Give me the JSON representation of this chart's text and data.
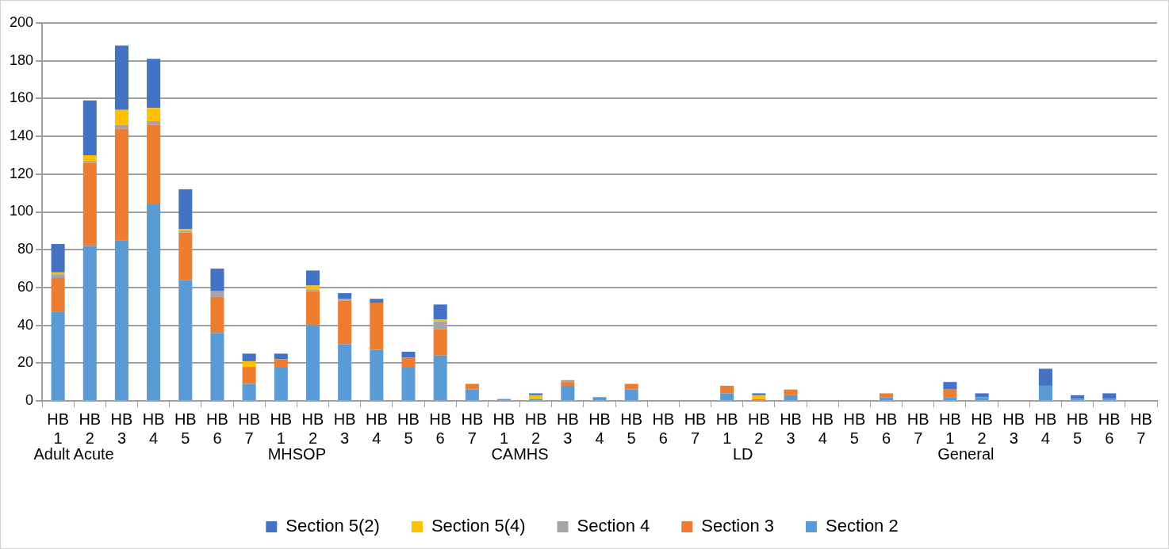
{
  "chart_data": {
    "type": "bar",
    "stacked": true,
    "categories": [
      "HB 1",
      "HB 2",
      "HB 3",
      "HB 4",
      "HB 5",
      "HB 6",
      "HB 7",
      "HB 1",
      "HB 2",
      "HB 3",
      "HB 4",
      "HB 5",
      "HB 6",
      "HB 7",
      "HB 1",
      "HB 2",
      "HB 3",
      "HB 4",
      "HB 5",
      "HB 6",
      "HB 7",
      "HB 1",
      "HB 2",
      "HB 3",
      "HB 4",
      "HB 5",
      "HB 6",
      "HB 7",
      "HB 1",
      "HB 2",
      "HB 3",
      "HB 4",
      "HB 5",
      "HB 6",
      "HB 7"
    ],
    "annotations": [
      "Adult Acute",
      "MHSOP",
      "CAMHS",
      "LD",
      "General"
    ],
    "series": [
      {
        "name": "Section 2",
        "color": "#5b9bd5",
        "values": [
          47,
          82,
          85,
          104,
          64,
          36,
          9,
          18,
          40,
          30,
          27,
          18,
          24,
          6,
          1,
          1,
          8,
          2,
          6,
          0,
          0,
          4,
          0,
          3,
          0,
          0,
          2,
          0,
          2,
          2,
          0,
          8,
          1,
          1,
          0
        ]
      },
      {
        "name": "Section 3",
        "color": "#ed7d31",
        "values": [
          18,
          44,
          59,
          42,
          25,
          19,
          9,
          4,
          18,
          23,
          25,
          5,
          14,
          3,
          0,
          0,
          2,
          0,
          3,
          0,
          0,
          4,
          1,
          3,
          0,
          0,
          2,
          0,
          4,
          0,
          0,
          0,
          0,
          0,
          0
        ]
      },
      {
        "name": "Section 4",
        "color": "#a5a5a5",
        "values": [
          2,
          1,
          2,
          2,
          1,
          3,
          0,
          0,
          1,
          1,
          0,
          0,
          4,
          0,
          0,
          0,
          1,
          0,
          0,
          0,
          0,
          0,
          0,
          0,
          0,
          0,
          0,
          0,
          0,
          0,
          0,
          0,
          0,
          0,
          0
        ]
      },
      {
        "name": "Section 5(4)",
        "color": "#ffc000",
        "values": [
          1,
          3,
          8,
          7,
          1,
          0,
          3,
          0,
          2,
          0,
          0,
          0,
          1,
          0,
          0,
          2,
          0,
          0,
          0,
          0,
          0,
          0,
          2,
          0,
          0,
          0,
          0,
          0,
          0,
          0,
          0,
          0,
          0,
          0,
          0
        ]
      },
      {
        "name": "Section 5(2)",
        "color": "#4472c4",
        "values": [
          15,
          29,
          34,
          26,
          21,
          12,
          4,
          3,
          8,
          3,
          2,
          3,
          8,
          0,
          0,
          1,
          0,
          0,
          0,
          0,
          0,
          0,
          1,
          0,
          0,
          0,
          0,
          0,
          4,
          2,
          0,
          9,
          2,
          3,
          0
        ]
      }
    ],
    "ylim": [
      0,
      200
    ],
    "yticks": [
      0,
      20,
      40,
      60,
      80,
      100,
      120,
      140,
      160,
      180,
      200
    ],
    "grid": "y",
    "legend": "bottom"
  }
}
